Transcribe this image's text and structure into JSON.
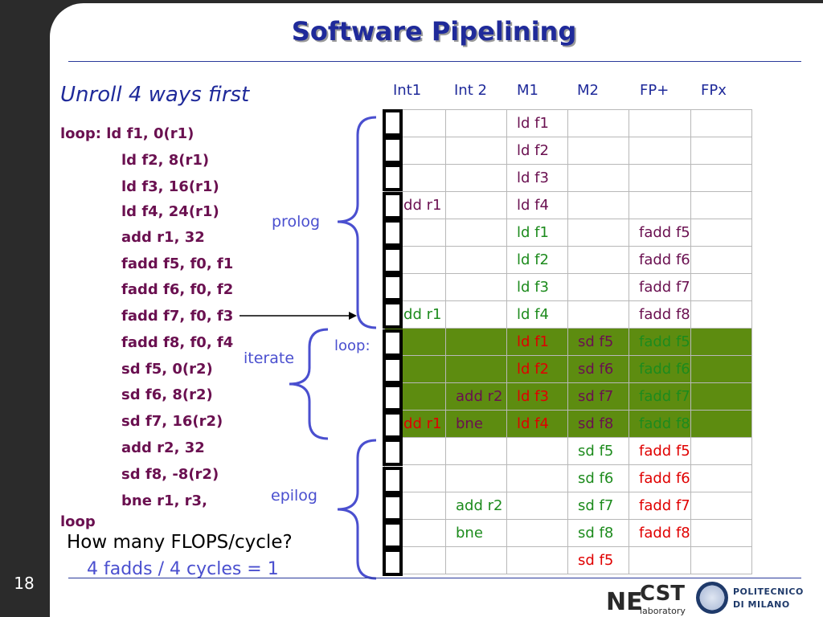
{
  "slide": {
    "number": "18",
    "title": "Software Pipelining",
    "subtitle": "Unroll 4 ways first"
  },
  "code": [
    "loop:  ld f1, 0(r1)",
    "ld f2, 8(r1)",
    "ld f3, 16(r1)",
    "ld f4, 24(r1)",
    "add r1, 32",
    "fadd f5, f0, f1",
    "fadd f6, f0, f2",
    "fadd f7, f0, f3",
    "fadd f8, f0, f4",
    "sd f5, 0(r2)",
    "sd f6, 8(r2)",
    "sd f7, 16(r2)",
    "add r2, 32",
    "sd f8, -8(r2)",
    "bne r1, r3,",
    "loop"
  ],
  "labels": {
    "prolog": "prolog",
    "iterate": "iterate",
    "epilog": "epilog",
    "loop_marker": "loop:"
  },
  "question": "How many FLOPS/cycle?",
  "answer": "4 fadds / 4 cycles = 1",
  "columns": [
    "Int1",
    "Int 2",
    "M1",
    "M2",
    "FP+",
    "FPx"
  ],
  "schedule": [
    [
      "",
      "",
      "ld f1",
      "",
      "",
      ""
    ],
    [
      "",
      "",
      "ld f2",
      "",
      "",
      ""
    ],
    [
      "",
      "",
      "ld f3",
      "",
      "",
      ""
    ],
    [
      "add r1",
      "",
      "ld f4",
      "",
      "",
      ""
    ],
    [
      "",
      "",
      "ld f1",
      "",
      "fadd f5",
      ""
    ],
    [
      "",
      "",
      "ld f2",
      "",
      "fadd f6",
      ""
    ],
    [
      "",
      "",
      "ld f3",
      "",
      "fadd f7",
      ""
    ],
    [
      "add r1",
      "",
      "ld f4",
      "",
      "fadd f8",
      ""
    ],
    [
      "",
      "",
      "ld f1",
      "sd f5",
      "fadd f5",
      ""
    ],
    [
      "",
      "",
      "ld f2",
      "sd f6",
      "fadd f6",
      ""
    ],
    [
      "",
      "add r2",
      "ld f3",
      "sd f7",
      "fadd f7",
      ""
    ],
    [
      "add r1",
      "bne",
      "ld f4",
      "sd f8",
      "fadd f8",
      ""
    ],
    [
      "",
      "",
      "",
      "sd f5",
      "fadd f5",
      ""
    ],
    [
      "",
      "",
      "",
      "sd f6",
      "fadd f6",
      ""
    ],
    [
      "",
      "add r2",
      "",
      "sd f7",
      "fadd f7",
      ""
    ],
    [
      "",
      "bne",
      "",
      "sd f8",
      "fadd f8",
      ""
    ],
    [
      "",
      "",
      "",
      "sd f5",
      "",
      ""
    ]
  ],
  "colors": {
    "title": "#1f2a9a",
    "code": "#6a1050",
    "label": "#4a4fcf",
    "loop_highlight": "#5d8c10",
    "prolog_text": "#6a1050",
    "steady_text": "#1d8b1d",
    "epilog_text": "#e00000"
  },
  "logos": {
    "necst_ne": "NE",
    "necst_cst": "CST",
    "necst_lab": "laboratory",
    "polimi_line1": "POLITECNICO",
    "polimi_line2": "DI MILANO"
  }
}
